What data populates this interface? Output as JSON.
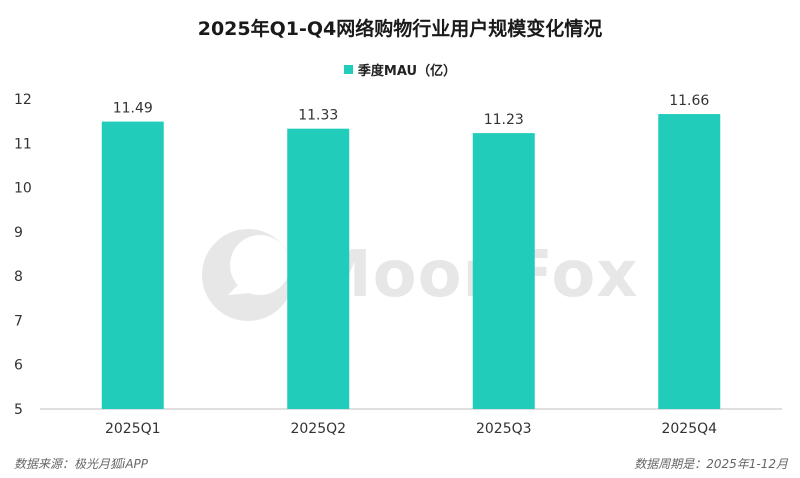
{
  "header": {
    "title": "2025年Q1-Q4网络购物行业用户规模变化情况"
  },
  "watermark": {
    "text": "MoonFox"
  },
  "footer": {
    "source": "数据来源：极光月狐iAPP",
    "period": "数据周期是：2025年1-12月"
  },
  "chart_data": {
    "type": "bar",
    "categories": [
      "2025Q1",
      "2025Q2",
      "2025Q3",
      "2025Q4"
    ],
    "series": [
      {
        "name": "季度MAU（亿）",
        "values": [
          11.49,
          11.33,
          11.23,
          11.66
        ],
        "color": "#22CCBB"
      }
    ],
    "value_labels": [
      "11.49",
      "11.33",
      "11.23",
      "11.66"
    ],
    "yticks": [
      "5",
      "6",
      "7",
      "8",
      "9",
      "10",
      "11",
      "12"
    ],
    "ylim": [
      5,
      12
    ],
    "legend_position": "top-center",
    "grid": false
  }
}
